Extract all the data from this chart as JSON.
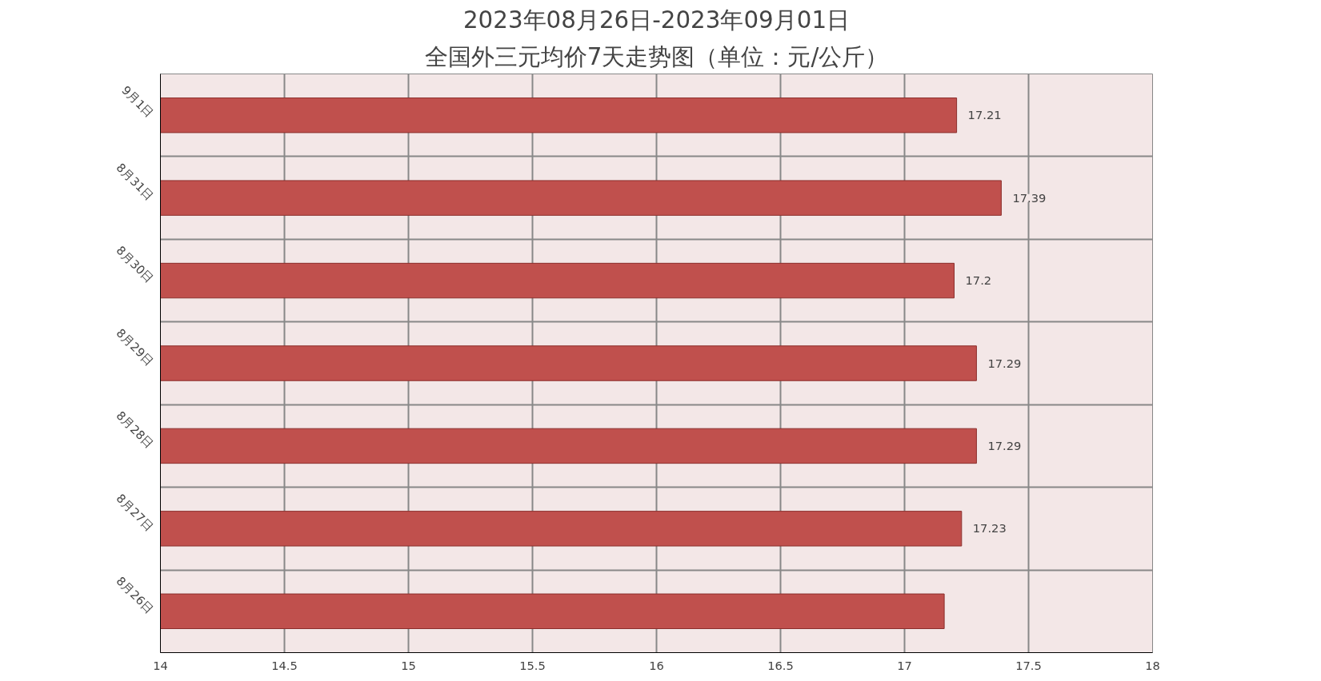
{
  "chart_data": {
    "type": "bar",
    "orientation": "horizontal",
    "title": "2023年08月26日-2023年09月01日",
    "subtitle": "全国外三元均价7天走势图（单位：元/公斤）",
    "categories": [
      "9月1日",
      "8月31日",
      "8月30日",
      "8月29日",
      "8月28日",
      "8月27日",
      "8月26日"
    ],
    "values": [
      17.21,
      17.39,
      17.2,
      17.29,
      17.29,
      17.23,
      17.16
    ],
    "value_labels": [
      "17.21",
      "17.39",
      "17.2",
      "17.29",
      "17.29",
      "17.23",
      null
    ],
    "color": "#c0504d",
    "xlim": [
      14,
      18
    ],
    "xticks": [
      14,
      14.5,
      15,
      15.5,
      16,
      16.5,
      17,
      17.5,
      18
    ],
    "grid": true
  }
}
